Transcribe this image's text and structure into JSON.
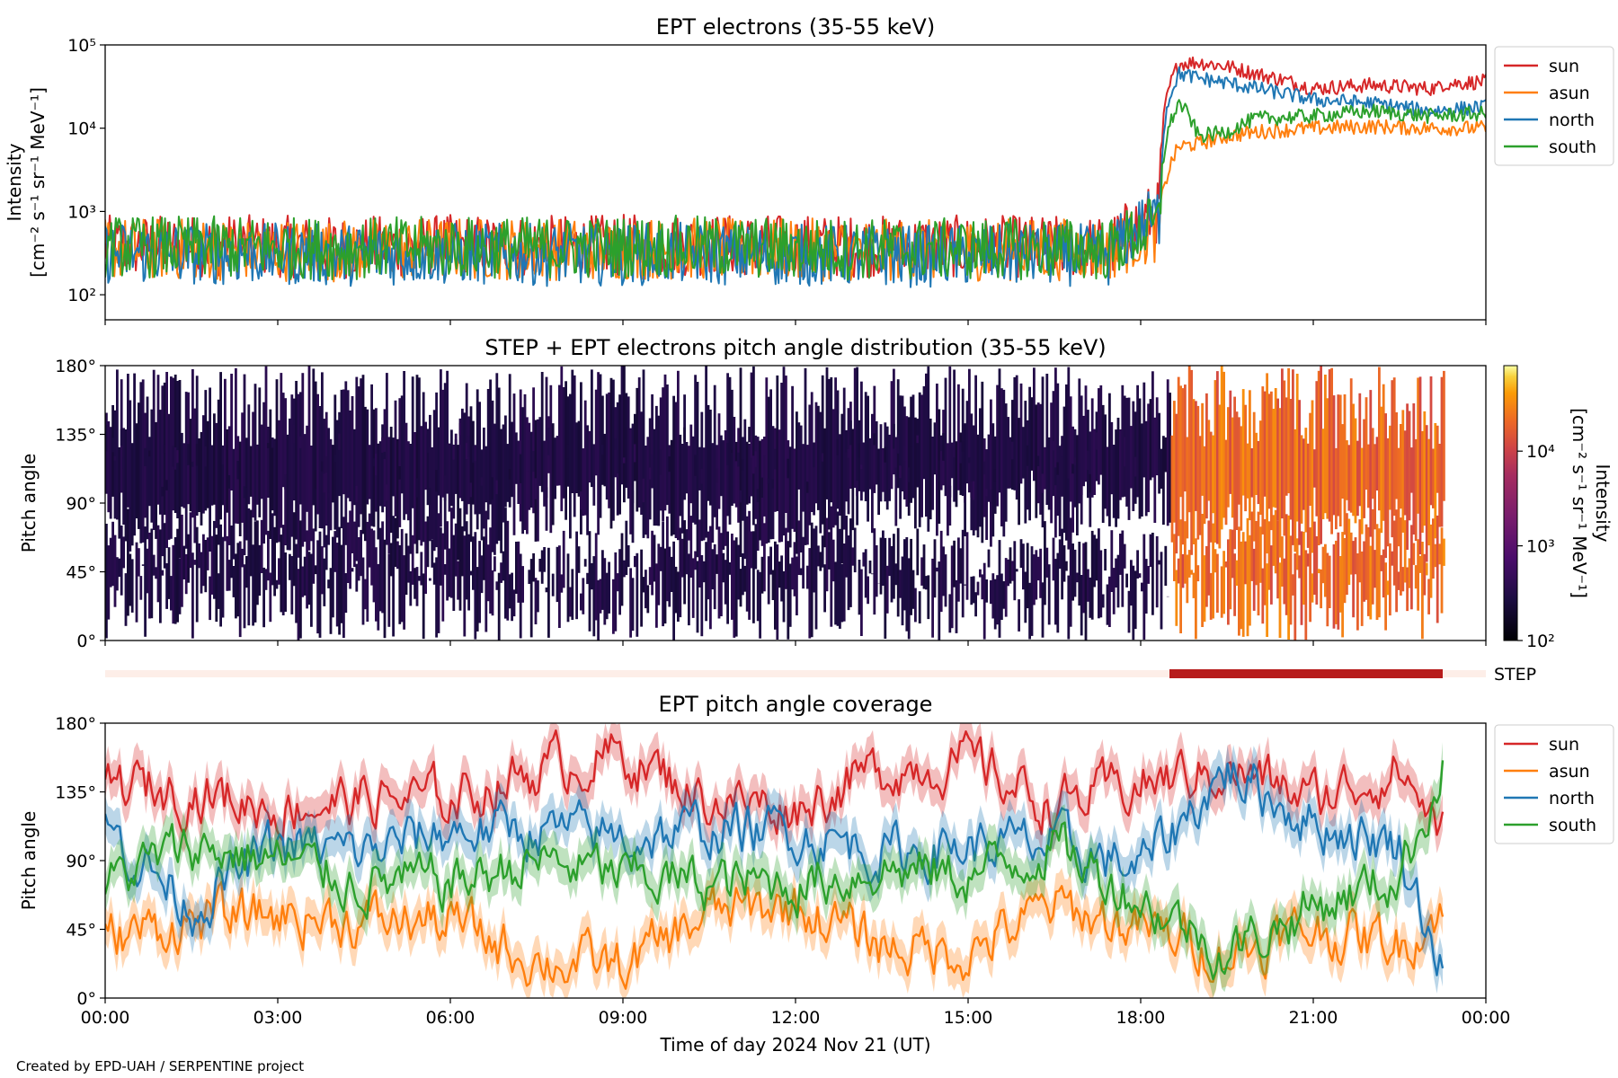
{
  "chart_data": [
    {
      "type": "line",
      "title": "EPT electrons (35-55 keV)",
      "ylabel_line1": "Intensity",
      "ylabel_line2": "[cm⁻² s⁻¹ sr⁻¹ MeV⁻¹]",
      "yscale": "log",
      "ylim": [
        50,
        100000
      ],
      "yticks": [
        "10²",
        "10³",
        "10⁴",
        "10⁵"
      ],
      "legend_position": "outside-right",
      "x": [
        "00:00",
        "02:00",
        "04:00",
        "06:00",
        "08:00",
        "10:00",
        "12:00",
        "14:00",
        "16:00",
        "17:30",
        "18:20",
        "18:40",
        "19:00",
        "19:30",
        "20:00",
        "21:00",
        "22:00",
        "23:00",
        "24:00"
      ],
      "series": [
        {
          "name": "sun",
          "color": "#d62728",
          "values": [
            380,
            390,
            370,
            390,
            380,
            400,
            390,
            380,
            380,
            370,
            1000,
            60000,
            62000,
            55000,
            45000,
            30000,
            33000,
            30000,
            33000
          ]
        },
        {
          "name": "asun",
          "color": "#ff7f0e",
          "values": [
            360,
            350,
            340,
            360,
            350,
            360,
            350,
            340,
            350,
            350,
            600,
            6000,
            6500,
            8000,
            9000,
            10000,
            10500,
            10000,
            10000
          ]
        },
        {
          "name": "north",
          "color": "#1f77b4",
          "values": [
            320,
            310,
            300,
            310,
            300,
            310,
            300,
            290,
            300,
            300,
            900,
            45000,
            40000,
            35000,
            30000,
            22000,
            20000,
            16000,
            18000
          ]
        },
        {
          "name": "south",
          "color": "#2ca02c",
          "values": [
            380,
            370,
            360,
            370,
            370,
            380,
            360,
            350,
            360,
            350,
            700,
            20000,
            8000,
            9000,
            13000,
            14000,
            16000,
            14000,
            15000
          ]
        }
      ]
    },
    {
      "type": "heatmap",
      "title": "STEP + EPT electrons pitch angle distribution (35-55 keV)",
      "ylabel": "Pitch angle",
      "yticks": [
        "0°",
        "45°",
        "90°",
        "135°",
        "180°"
      ],
      "ylim": [
        0,
        180
      ],
      "colorbar_label_line1": "Intensity",
      "colorbar_label_line2": "[cm⁻² s⁻¹ sr⁻¹ MeV⁻¹]",
      "colorbar_ticks": [
        "10²",
        "10³",
        "10⁴"
      ],
      "colorbar_range": [
        100,
        80000
      ],
      "colormap": "inferno",
      "background_intensity": 300,
      "event_intensity": 20000,
      "event_start": "18:30",
      "event_end": "23:15"
    },
    {
      "type": "bar",
      "label": "STEP",
      "coverage_color": "#b71c1c",
      "background_color": "#fdeee8",
      "start": "18:30",
      "end": "23:15"
    },
    {
      "type": "area",
      "title": "EPT pitch angle coverage",
      "ylabel": "Pitch angle",
      "xlabel": "Time of day 2024 Nov 21 (UT)",
      "ylim": [
        0,
        180
      ],
      "yticks": [
        "0°",
        "45°",
        "90°",
        "135°",
        "180°"
      ],
      "xticks": [
        "00:00",
        "03:00",
        "06:00",
        "09:00",
        "12:00",
        "15:00",
        "18:00",
        "21:00",
        "00:00"
      ],
      "legend_position": "outside-right",
      "x": [
        "00:00",
        "01:30",
        "03:00",
        "04:30",
        "06:00",
        "07:30",
        "09:00",
        "10:30",
        "12:00",
        "13:30",
        "15:00",
        "16:30",
        "18:00",
        "19:30",
        "21:00",
        "22:30",
        "23:15"
      ],
      "series": [
        {
          "name": "sun",
          "color": "#d62728",
          "values": [
            140,
            135,
            125,
            130,
            130,
            150,
            160,
            130,
            125,
            150,
            155,
            125,
            140,
            150,
            130,
            150,
            110
          ]
        },
        {
          "name": "asun",
          "color": "#ff7f0e",
          "values": [
            40,
            50,
            55,
            50,
            50,
            25,
            20,
            55,
            60,
            35,
            30,
            60,
            45,
            30,
            45,
            35,
            60
          ]
        },
        {
          "name": "north",
          "color": "#1f77b4",
          "values": [
            110,
            60,
            100,
            95,
            110,
            110,
            105,
            110,
            110,
            95,
            100,
            100,
            85,
            150,
            115,
            100,
            20
          ]
        },
        {
          "name": "south",
          "color": "#2ca02c",
          "values": [
            75,
            100,
            90,
            75,
            75,
            90,
            80,
            75,
            75,
            85,
            80,
            100,
            65,
            30,
            60,
            80,
            150
          ]
        }
      ]
    }
  ],
  "footer": "Created by EPD-UAH / SERPENTINE project"
}
